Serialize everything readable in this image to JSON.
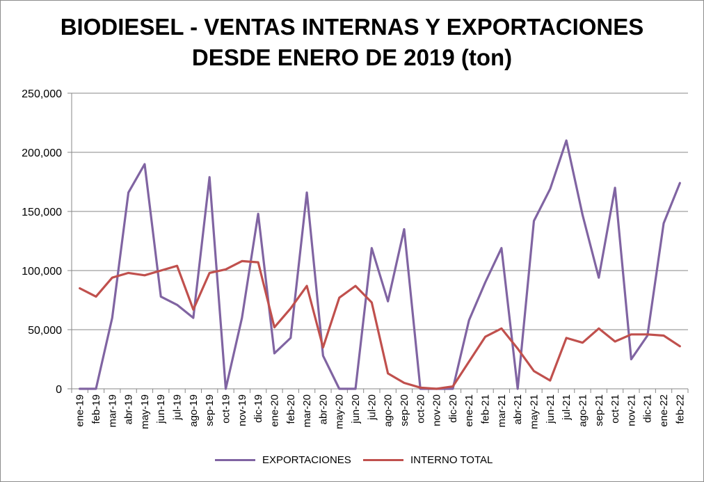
{
  "chart_data": {
    "type": "line",
    "title_line1": "BIODIESEL - VENTAS INTERNAS Y EXPORTACIONES",
    "title_line2": "DESDE ENERO DE 2019 (ton)",
    "ylim": [
      0,
      250000
    ],
    "yticks": [
      "0",
      "50,000",
      "100,000",
      "150,000",
      "200,000",
      "250,000"
    ],
    "grid": true,
    "legend_position": "bottom",
    "categories": [
      "ene-19",
      "feb-19",
      "mar-19",
      "abr-19",
      "may-19",
      "jun-19",
      "jul-19",
      "ago-19",
      "sep-19",
      "oct-19",
      "nov-19",
      "dic-19",
      "ene-20",
      "feb-20",
      "mar-20",
      "abr-20",
      "may-20",
      "jun-20",
      "jul-20",
      "ago-20",
      "sep-20",
      "oct-20",
      "nov-20",
      "dic-20",
      "ene-21",
      "feb-21",
      "mar-21",
      "abr-21",
      "may-21",
      "jun-21",
      "jul-21",
      "ago-21",
      "sep-21",
      "oct-21",
      "nov-21",
      "dic-21",
      "ene-22",
      "feb-22"
    ],
    "series": [
      {
        "name": "EXPORTACIONES",
        "color": "#8064a2",
        "values": [
          0,
          0,
          60000,
          166000,
          190000,
          78000,
          71000,
          60000,
          179000,
          0,
          60000,
          148000,
          30000,
          43000,
          166000,
          28000,
          0,
          0,
          119000,
          74000,
          135000,
          0,
          0,
          0,
          58000,
          90000,
          119000,
          0,
          142000,
          169000,
          210000,
          147000,
          94000,
          170000,
          25000,
          45000,
          140000,
          174000
        ]
      },
      {
        "name": "INTERNO TOTAL",
        "color": "#c0504d",
        "values": [
          85000,
          78000,
          94000,
          98000,
          96000,
          100000,
          104000,
          67000,
          98000,
          101000,
          108000,
          107000,
          52000,
          68000,
          87000,
          35000,
          77000,
          87000,
          73000,
          13000,
          5000,
          1000,
          0,
          2000,
          23000,
          44000,
          51000,
          34000,
          15000,
          7000,
          43000,
          39000,
          51000,
          40000,
          46000,
          46000,
          45000,
          36000
        ]
      }
    ]
  }
}
